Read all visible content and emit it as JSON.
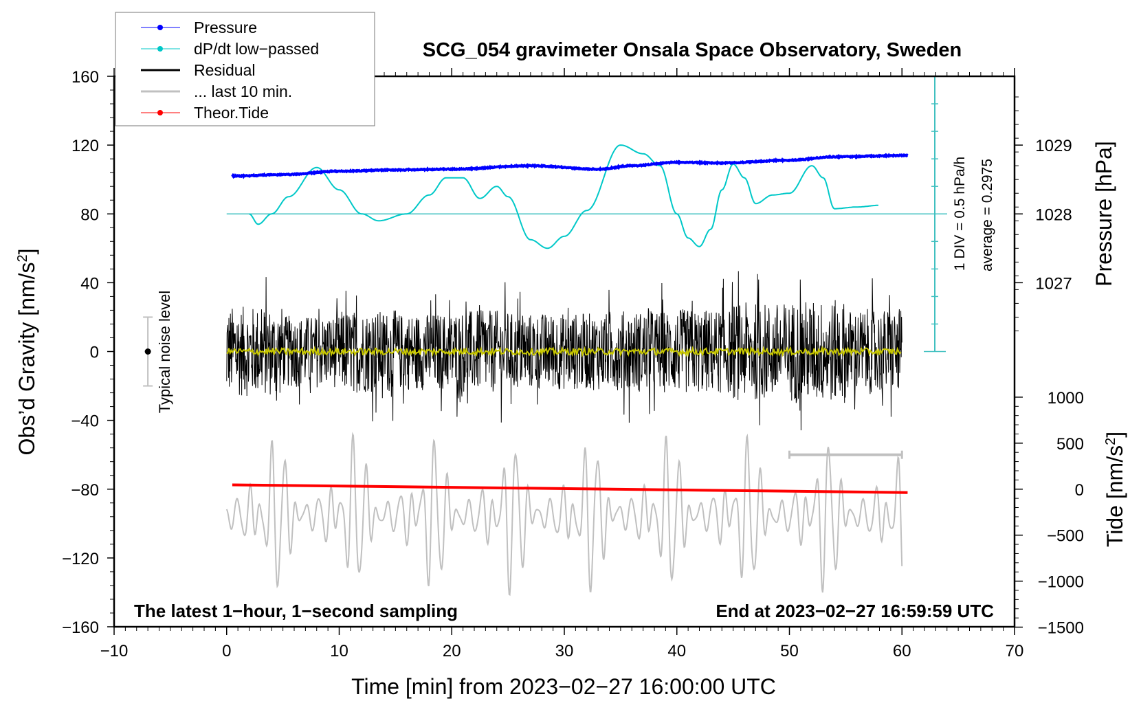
{
  "chart_data": {
    "type": "line",
    "title": "SCG_054 gravimeter Onsala Space Observatory, Sweden",
    "xlabel": "Time [min] from 2023−02−27 16:00:00 UTC",
    "ylabel": "Obs’d Gravity [nm/s²]",
    "ylabel_main": "Obs’d Gravity [nm/s",
    "ylabel_right_pressure": "Pressure [hPa]",
    "ylabel_right_tide_main": "Tide [nm/s",
    "ylabel_right_tide": "Tide [nm/s²]",
    "sup2": "2",
    "xlim": [
      -10,
      70
    ],
    "ylim": [
      -160,
      160
    ],
    "x_ticks": [
      "−10",
      "0",
      "10",
      "20",
      "30",
      "40",
      "50",
      "60",
      "70"
    ],
    "x_tick_values": [
      -10,
      0,
      10,
      20,
      30,
      40,
      50,
      60,
      70
    ],
    "y_ticks": [
      "160",
      "120",
      "80",
      "40",
      "0",
      "−40",
      "−80",
      "−120",
      "−160"
    ],
    "y_tick_values": [
      160,
      120,
      80,
      40,
      0,
      -40,
      -80,
      -120,
      -160
    ],
    "pressure_axis": {
      "ticks": [
        "1029",
        "1028",
        "1027"
      ],
      "values": [
        1029,
        1028,
        1027
      ],
      "ref_hpa": 1028,
      "ref_gravity": 80,
      "gravity_per_hpa": 40
    },
    "tide_axis": {
      "ticks": [
        "1000",
        "500",
        "0",
        "−500",
        "−1000",
        "−1500"
      ],
      "values": [
        1000,
        500,
        0,
        -500,
        -1000,
        -1500
      ],
      "ref_gravity": -80,
      "tide_per_gravity": 18.7
    },
    "legend": {
      "placement": "top-left",
      "entries": [
        {
          "label": "Pressure",
          "color": "#0000ff",
          "marker": true
        },
        {
          "label": "dP/dt low−passed",
          "color": "#00c8c8",
          "marker": true
        },
        {
          "label": "Residual",
          "color": "#000000",
          "marker": false
        },
        {
          "label": "... last 10 min.",
          "color": "#c0c0c0",
          "marker": false
        },
        {
          "label": "Theor.Tide",
          "color": "#ff0000",
          "marker": true
        }
      ]
    },
    "annotations": {
      "left_bottom": "The latest 1−hour, 1−second sampling",
      "right_bottom": "End at 2023−02−27 16:59:59 UTC",
      "noise": "Typical noise level",
      "div": "1 DIV = 0.5 hPa/h",
      "average": "average = 0.2975"
    },
    "noise_level": {
      "x": -7,
      "center": 0,
      "half_range": 20
    },
    "dpdt_scale": {
      "average_hpa_per_h": 0.2975,
      "hpa_per_h_per_div": 0.5,
      "baseline_gravity": 80
    },
    "series": [
      {
        "name": "Pressure",
        "unit": "hPa",
        "color": "#0000ff",
        "x": [
          0.5,
          5,
          10,
          15,
          20,
          27,
          33,
          36,
          40,
          44,
          50,
          54,
          60.5
        ],
        "y": [
          1028.55,
          1028.57,
          1028.62,
          1028.64,
          1028.65,
          1028.7,
          1028.65,
          1028.7,
          1028.75,
          1028.74,
          1028.78,
          1028.83,
          1028.85
        ]
      },
      {
        "name": "dP/dt low-passed",
        "unit": "hPa/h",
        "color": "#00c8c8",
        "x": [
          2,
          2.8,
          4,
          5.5,
          8,
          10,
          12,
          13.5,
          16,
          18,
          19.5,
          21,
          22.5,
          24,
          25,
          27,
          28.5,
          30,
          32,
          35,
          37,
          38.5,
          40,
          41,
          42,
          43,
          44,
          45,
          46,
          47,
          48.5,
          50,
          52,
          53,
          54,
          56,
          58
        ],
        "y": [
          0.2975,
          0.11,
          0.298,
          0.61,
          1.141,
          0.735,
          0.298,
          0.173,
          0.298,
          0.641,
          0.954,
          0.954,
          0.579,
          0.798,
          0.61,
          -0.171,
          -0.327,
          -0.109,
          0.36,
          1.548,
          1.391,
          1.173,
          0.298,
          -0.14,
          -0.296,
          0.017,
          0.735,
          1.204,
          0.954,
          0.485,
          0.641,
          0.673,
          1.173,
          0.954,
          0.392,
          0.423,
          0.454
        ]
      },
      {
        "name": "Residual",
        "unit": "nm/s²",
        "color": "#000000",
        "sampling_s": 1,
        "envelope_per_5min": [
          35,
          28,
          32,
          30,
          32,
          30,
          30,
          32,
          33,
          38,
          40,
          33
        ]
      },
      {
        "name": "Residual smoothed",
        "unit": "nm/s²",
        "color": "#c8c800",
        "mean": 0
      },
      {
        "name": "... last 10 min.",
        "unit": "nm/s²",
        "color": "#c0c0c0",
        "center": -95,
        "amplitude": 40,
        "time_window": [
          50,
          60
        ]
      },
      {
        "name": "Theor.Tide",
        "unit": "nm/s²",
        "color": "#ff0000",
        "x": [
          0.5,
          60.5
        ],
        "y": [
          47,
          -37
        ]
      }
    ]
  }
}
